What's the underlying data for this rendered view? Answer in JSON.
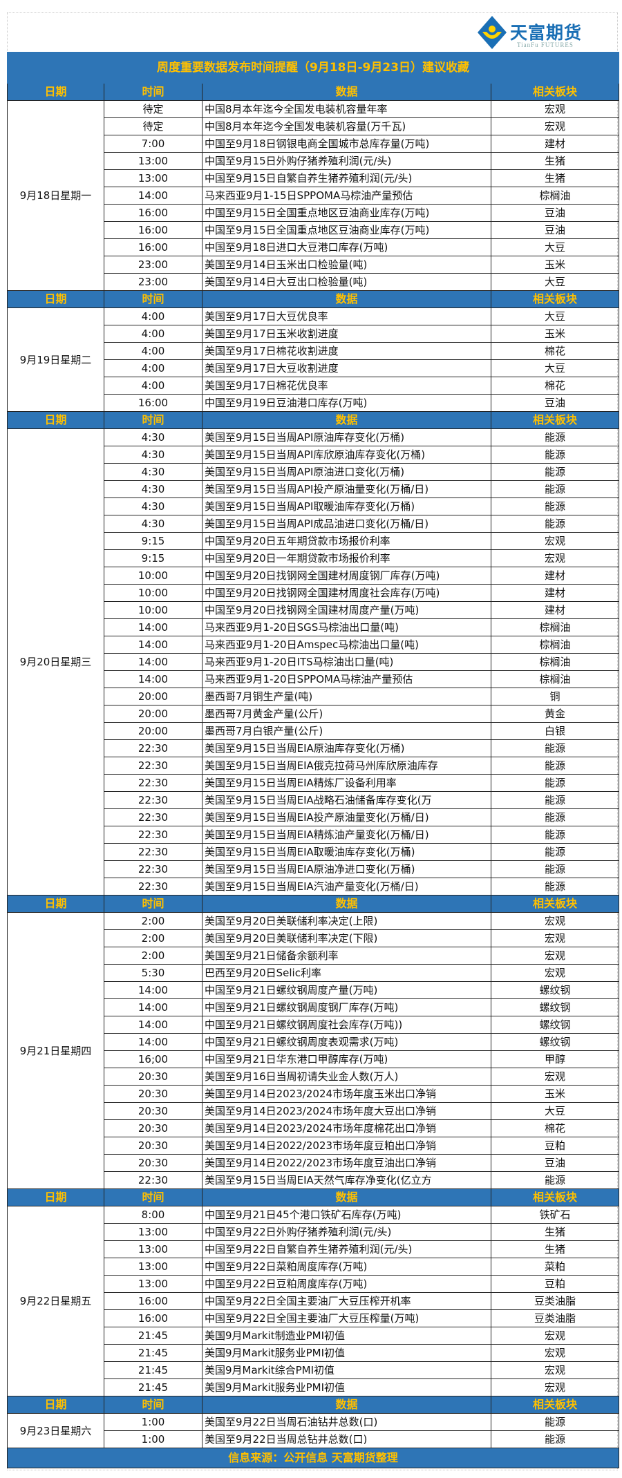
{
  "logo": {
    "name": "天富期货",
    "en": "TianFu FUTURES"
  },
  "title": "周度重要数据发布时间提醒（9月18日-9月23日）建议收藏",
  "columns": [
    "日期",
    "时间",
    "数据",
    "相关板块"
  ],
  "colors": {
    "header_bg": "#2e75b6",
    "header_text": "#ffc000"
  },
  "sections": [
    {
      "date": "9月18日星期一",
      "rows": [
        [
          "待定",
          "中国8月本年迄今全国发电装机容量年率",
          "宏观"
        ],
        [
          "待定",
          "中国8月本年迄今全国发电装机容量(万千瓦)",
          "宏观"
        ],
        [
          "7:00",
          "中国至9月18日钢银电商全国城市总库存量(万吨)",
          "建材"
        ],
        [
          "13:00",
          "中国至9月15日外购仔猪养殖利润(元/头)",
          "生猪"
        ],
        [
          "13:00",
          "中国至9月15日自繁自养生猪养殖利润(元/头)",
          "生猪"
        ],
        [
          "14:00",
          "马来西亚9月1-15日SPPOMA马棕油产量预估",
          "棕榈油"
        ],
        [
          "16:00",
          "中国至9月15日全国重点地区豆油商业库存(万吨)",
          "豆油"
        ],
        [
          "16:00",
          "中国至9月15日全国重点地区豆油商业库存(万吨)",
          "豆油"
        ],
        [
          "16:00",
          "中国至9月18日进口大豆港口库存(万吨)",
          "大豆"
        ],
        [
          "23:00",
          "美国至9月14日玉米出口检验量(吨)",
          "玉米"
        ],
        [
          "23:00",
          "美国至9月14日大豆出口检验量(吨)",
          "大豆"
        ]
      ]
    },
    {
      "date": "9月19日星期二",
      "rows": [
        [
          "4:00",
          "美国至9月17日大豆优良率",
          "大豆"
        ],
        [
          "4:00",
          "美国至9月17日玉米收割进度",
          "玉米"
        ],
        [
          "4:00",
          "美国至9月17日棉花收割进度",
          "棉花"
        ],
        [
          "4:00",
          "美国至9月17日大豆收割进度",
          "大豆"
        ],
        [
          "4:00",
          "美国至9月17日棉花优良率",
          "棉花"
        ],
        [
          "16:00",
          "中国至9月19日豆油港口库存(万吨)",
          "豆油"
        ]
      ]
    },
    {
      "date": "9月20日星期三",
      "rows": [
        [
          "4:30",
          "美国至9月15日当周API原油库存变化(万桶)",
          "能源"
        ],
        [
          "4:30",
          "美国至9月15日当周API库欣原油库存变化(万桶)",
          "能源"
        ],
        [
          "4:30",
          "美国至9月15日当周API原油进口变化(万桶)",
          "能源"
        ],
        [
          "4:30",
          "美国至9月15日当周API投产原油量变化(万桶/日)",
          "能源"
        ],
        [
          "4:30",
          "美国至9月15日当周API取暖油库存变化(万桶)",
          "能源"
        ],
        [
          "4:30",
          "美国至9月15日当周API成品油进口变化(万桶/日)",
          "能源"
        ],
        [
          "9:15",
          "中国至9月20日五年期贷款市场报价利率",
          "宏观"
        ],
        [
          "9:15",
          "中国至9月20日一年期贷款市场报价利率",
          "宏观"
        ],
        [
          "10:00",
          "中国至9月20日找钢网全国建材周度钢厂库存(万吨)",
          "建材"
        ],
        [
          "10:00",
          "中国至9月20日找钢网全国建材周度社会库存(万吨)",
          "建材"
        ],
        [
          "10:00",
          "中国至9月20日找钢网全国建材周度产量(万吨)",
          "建材"
        ],
        [
          "14:00",
          "马来西亚9月1-20日SGS马棕油出口量(吨)",
          "棕榈油"
        ],
        [
          "14:00",
          "马来西亚9月1-20日Amspec马棕油出口量(吨)",
          "棕榈油"
        ],
        [
          "14:00",
          "马来西亚9月1-20日ITS马棕油出口量(吨)",
          "棕榈油"
        ],
        [
          "14:00",
          "马来西亚9月1-20日SPPOMA马棕油产量预估",
          "棕榈油"
        ],
        [
          "20:00",
          "墨西哥7月铜生产量(吨)",
          "铜"
        ],
        [
          "20:00",
          "墨西哥7月黄金产量(公斤)",
          "黄金"
        ],
        [
          "20:00",
          "墨西哥7月白银产量(公斤)",
          "白银"
        ],
        [
          "22:30",
          "美国至9月15日当周EIA原油库存变化(万桶)",
          "能源"
        ],
        [
          "22:30",
          "美国至9月15日当周EIA俄克拉荷马州库欣原油库存",
          "能源"
        ],
        [
          "22:30",
          "美国至9月15日当周EIA精炼厂设备利用率",
          "能源"
        ],
        [
          "22:30",
          "美国至9月15日当周EIA战略石油储备库存变化(万",
          "能源"
        ],
        [
          "22:30",
          "美国至9月15日当周EIA投产原油量变化(万桶/日)",
          "能源"
        ],
        [
          "22:30",
          "美国至9月15日当周EIA精炼油产量变化(万桶/日)",
          "能源"
        ],
        [
          "22:30",
          "美国至9月15日当周EIA取暖油库存变化(万桶)",
          "能源"
        ],
        [
          "22:30",
          "美国至9月15日当周EIA原油净进口变化(万桶)",
          "能源"
        ],
        [
          "22:30",
          "美国至9月15日当周EIA汽油产量变化(万桶/日)",
          "能源"
        ]
      ]
    },
    {
      "date": "9月21日星期四",
      "rows": [
        [
          "2:00",
          "美国至9月20日美联储利率决定(上限)",
          "宏观"
        ],
        [
          "2:00",
          "美国至9月20日美联储利率决定(下限)",
          "宏观"
        ],
        [
          "2:00",
          "美国至9月21日储备余额利率",
          "宏观"
        ],
        [
          "5:30",
          "巴西至9月20日Selic利率",
          "宏观"
        ],
        [
          "14:00",
          "中国至9月21日螺纹钢周度产量(万吨)",
          "螺纹钢"
        ],
        [
          "14:00",
          "中国至9月21日螺纹钢周度钢厂库存(万吨)",
          "螺纹钢"
        ],
        [
          "14:00",
          "中国至9月21日螺纹钢周度社会库存(万吨))",
          "螺纹钢"
        ],
        [
          "14:00",
          "中国至9月21日螺纹钢周度表观需求(万吨)",
          "螺纹钢"
        ],
        [
          "16;00",
          "中国至9月21日华东港口甲醇库存(万吨)",
          "甲醇"
        ],
        [
          "20:30",
          "美国至9月16日当周初请失业金人数(万人)",
          "宏观"
        ],
        [
          "20:30",
          "美国至9月14日2023/2024市场年度玉米出口净销",
          "玉米"
        ],
        [
          "20:30",
          "美国至9月14日2023/2024市场年度大豆出口净销",
          "大豆"
        ],
        [
          "20:30",
          "美国至9月14日2023/2024市场年度棉花出口净销",
          "棉花"
        ],
        [
          "20:30",
          "美国至9月14日2022/2023市场年度豆粕出口净销",
          "豆粕"
        ],
        [
          "20:30",
          "美国至9月14日2022/2023市场年度豆油出口净销",
          "豆油"
        ],
        [
          "22:30",
          "美国至9月15日当周EIA天然气库存净变化(亿立方",
          "能源"
        ]
      ]
    },
    {
      "date": "9月22日星期五",
      "rows": [
        [
          "8:00",
          "中国至9月21日45个港口铁矿石库存(万吨)",
          "铁矿石"
        ],
        [
          "13:00",
          "中国至9月22日外购仔猪养殖利润(元/头)",
          "生猪"
        ],
        [
          "13:00",
          "中国至9月22日自繁自养生猪养殖利润(元/头)",
          "生猪"
        ],
        [
          "13:00",
          "中国至9月22日菜粕周度库存(万吨)",
          "菜粕"
        ],
        [
          "13:00",
          "中国至9月22日豆粕周度库存(万吨)",
          "豆粕"
        ],
        [
          "16:00",
          "中国至9月22日全国主要油厂大豆压榨开机率",
          "豆类油脂"
        ],
        [
          "16:00",
          "中国至9月22日全国主要油厂大豆压榨量(万吨)",
          "豆类油脂"
        ],
        [
          "21:45",
          "美国9月Markit制造业PMI初值",
          "宏观"
        ],
        [
          "21:45",
          "美国9月Markit服务业PMI初值",
          "宏观"
        ],
        [
          "21:45",
          "美国9月Markit综合PMI初值",
          "宏观"
        ],
        [
          "21:45",
          "美国9月Markit服务业PMI初值",
          "宏观"
        ]
      ]
    },
    {
      "date": "9月23日星期六",
      "rows": [
        [
          "1:00",
          "美国至9月22日当周石油钻井总数(口)",
          "能源"
        ],
        [
          "1:00",
          "美国至9月22日当周总钻井总数(口)",
          "能源"
        ]
      ]
    }
  ],
  "footer": "信息来源：公开信息  天富期货整理"
}
